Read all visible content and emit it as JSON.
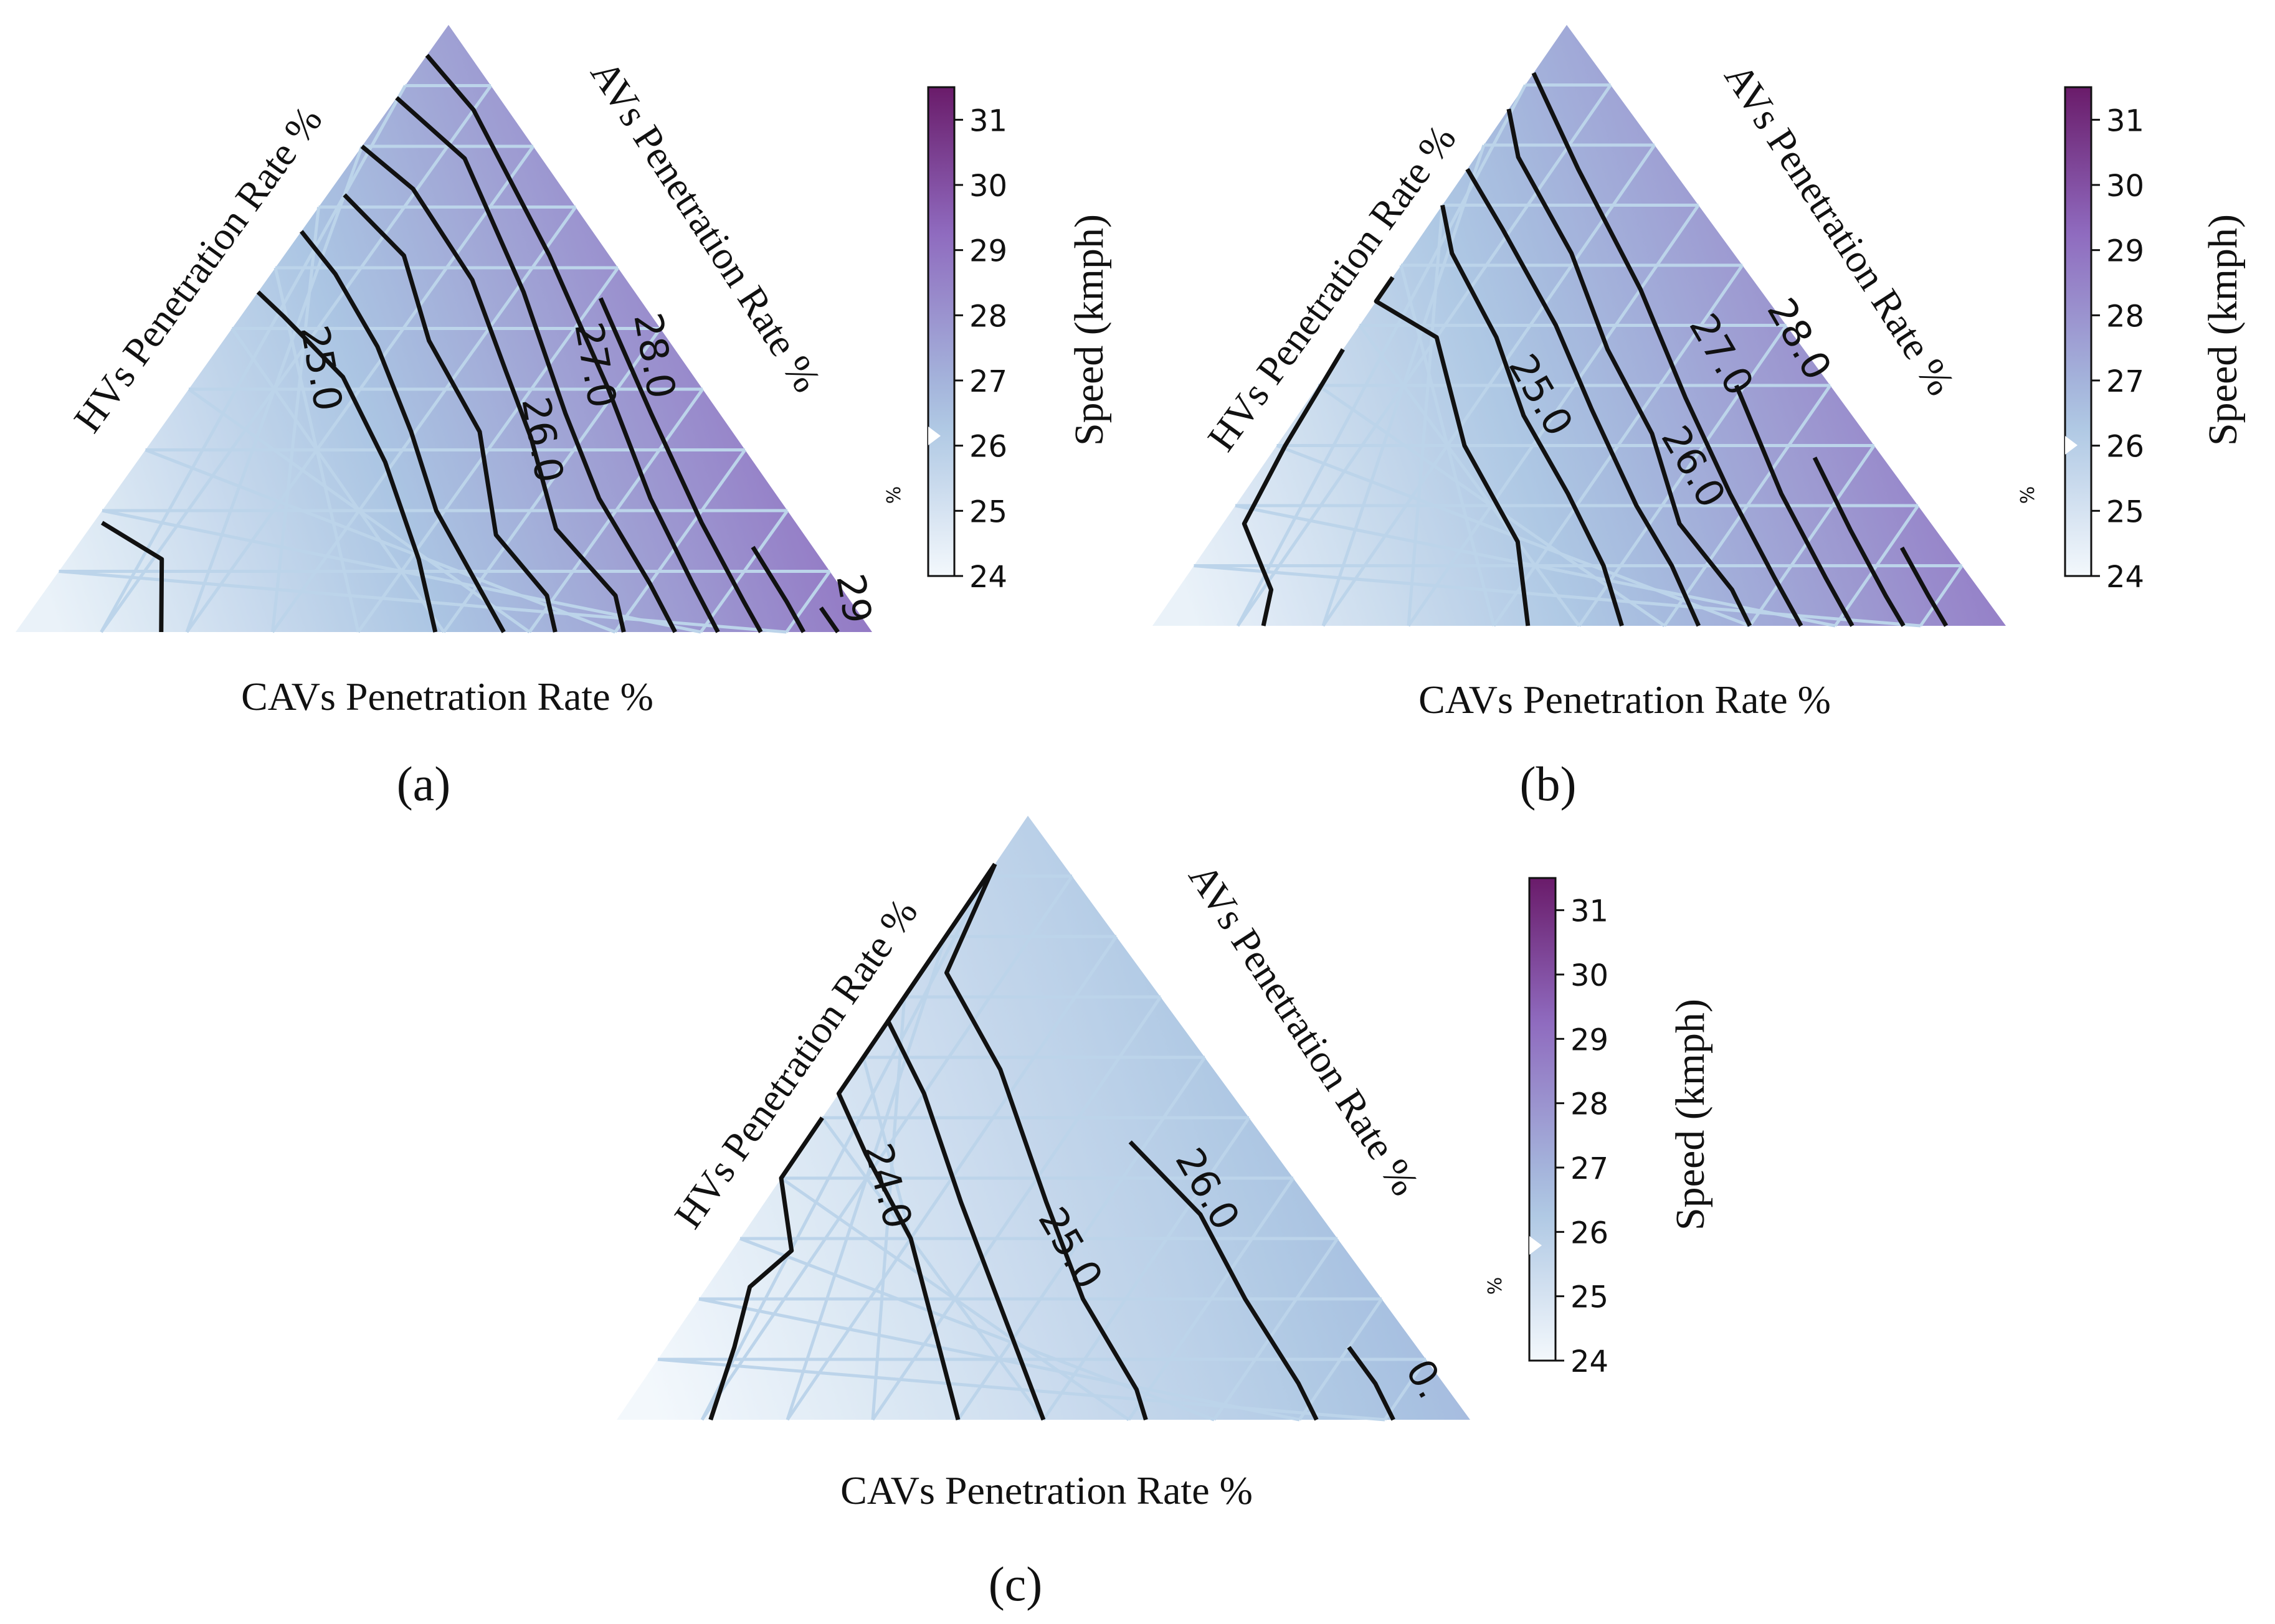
{
  "figure": {
    "captions": [
      "(a)",
      "(b)",
      "(c)"
    ]
  },
  "colors": {
    "low": "#f3f8fc",
    "mid": "#a9c4e2",
    "high": "#8f6bbf",
    "max": "#6a1b6a",
    "grid": "#bcd4ea",
    "contour": "#111111"
  },
  "chart_data": [
    {
      "type": "heatmap",
      "subtype": "ternary-contour",
      "title": "(a)",
      "axis_labels": {
        "bottom": "CAVs Penetration Rate %",
        "left": "HVs Penetration Rate %",
        "right": "AVs Penetration Rate %"
      },
      "colorbar": {
        "label": "Speed (kmph)",
        "small_label": "%",
        "range": [
          24,
          31.5
        ],
        "ticks": [
          "24",
          "25",
          "26",
          "27",
          "28",
          "29",
          "30",
          "31"
        ],
        "marker_value": 26
      },
      "contour_labels": [
        "25.0",
        "26.0",
        "27.0",
        "28.0",
        "29"
      ],
      "speed_range": [
        24.3,
        29.6
      ]
    },
    {
      "type": "heatmap",
      "subtype": "ternary-contour",
      "title": "(b)",
      "axis_labels": {
        "bottom": "CAVs Penetration Rate %",
        "left": "HVs Penetration Rate %",
        "right": "AVs Penetration Rate %"
      },
      "colorbar": {
        "label": "Speed (kmph)",
        "small_label": "%",
        "range": [
          24,
          31.5
        ],
        "ticks": [
          "24",
          "25",
          "26",
          "27",
          "28",
          "29",
          "30",
          "31"
        ],
        "marker_value": 26
      },
      "contour_labels": [
        "25.0",
        "26.0",
        "27.0",
        "28.0"
      ],
      "speed_range": [
        24.3,
        29.3
      ]
    },
    {
      "type": "heatmap",
      "subtype": "ternary-contour",
      "title": "(c)",
      "axis_labels": {
        "bottom": "CAVs Penetration Rate %",
        "left": "HVs Penetration Rate %",
        "right": "AVs Penetration Rate %"
      },
      "colorbar": {
        "label": "Speed (kmph)",
        "small_label": "%",
        "range": [
          24,
          31.5
        ],
        "ticks": [
          "24",
          "25",
          "26",
          "27",
          "28",
          "29",
          "30",
          "31"
        ],
        "marker_value": 26
      },
      "contour_labels": [
        "24.0",
        "25.0",
        "26.0",
        "0."
      ],
      "speed_range": [
        24.0,
        27.2
      ]
    }
  ]
}
